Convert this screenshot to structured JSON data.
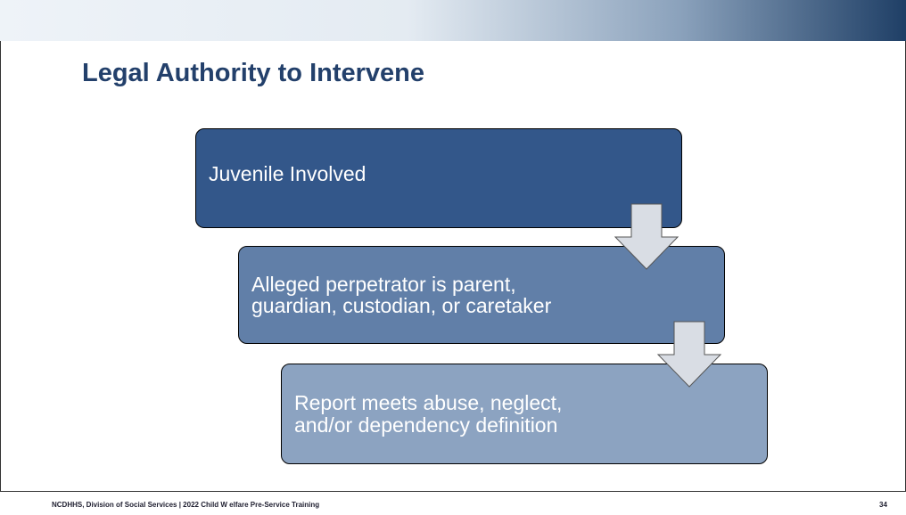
{
  "title": "Legal Authority to Intervene",
  "steps": [
    {
      "text": "Juvenile Involved"
    },
    {
      "text": "Alleged perpetrator is parent, guardian, custodian, or caretaker"
    },
    {
      "text": "Report meets abuse, neglect, and/or dependency definition"
    }
  ],
  "footer": {
    "text": "NCDHHS, Division of Social Services | 2022 Child W elfare Pre-Service Training",
    "page": "34"
  }
}
